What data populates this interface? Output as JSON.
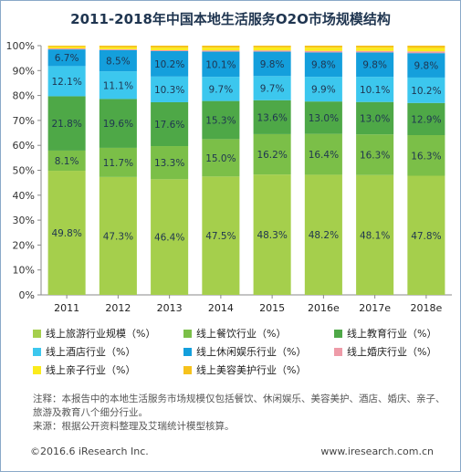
{
  "chart_data": {
    "type": "bar",
    "stacked": true,
    "title": "2011-2018年中国本地生活服务O2O市场规模结构",
    "categories": [
      "2011",
      "2012",
      "2013",
      "2014",
      "2015",
      "2016e",
      "2017e",
      "2018e"
    ],
    "y_ticks": [
      "0%",
      "10%",
      "20%",
      "30%",
      "40%",
      "50%",
      "60%",
      "70%",
      "80%",
      "90%",
      "100%"
    ],
    "ylim": [
      0,
      100
    ],
    "grid": false,
    "legend_position": "bottom",
    "series": [
      {
        "name": "线上旅游行业规模（%）",
        "color": "#a5cf4c",
        "values": [
          49.8,
          47.3,
          46.4,
          47.5,
          48.3,
          48.2,
          48.1,
          47.8
        ]
      },
      {
        "name": "线上餐饮行业（%）",
        "color": "#7bbf48",
        "values": [
          8.1,
          11.7,
          13.3,
          15.0,
          16.2,
          16.4,
          16.3,
          16.3
        ]
      },
      {
        "name": "线上教育行业（%）",
        "color": "#4ea847",
        "values": [
          21.8,
          19.6,
          17.6,
          15.3,
          13.6,
          13.0,
          13.0,
          12.9
        ]
      },
      {
        "name": "线上酒店行业（%）",
        "color": "#3cc7ee",
        "values": [
          12.1,
          11.1,
          10.3,
          9.7,
          9.7,
          9.9,
          10.1,
          10.2
        ]
      },
      {
        "name": "线上休闲娱乐行业（%）",
        "color": "#149fdc",
        "values": [
          6.7,
          8.5,
          10.2,
          10.1,
          9.8,
          9.8,
          9.8,
          9.8
        ]
      },
      {
        "name": "线上婚庆行业（%）",
        "color": "#ee9ba8",
        "values": [
          0.4,
          0.4,
          0.4,
          0.5,
          0.5,
          0.6,
          0.6,
          0.7
        ]
      },
      {
        "name": "线上亲子行业（%）",
        "color": "#fbeb1c",
        "values": [
          0.6,
          0.7,
          1.0,
          1.1,
          1.2,
          1.3,
          1.3,
          1.4
        ]
      },
      {
        "name": "线上美容美护行业（%）",
        "color": "#f6c21c",
        "values": [
          0.5,
          0.7,
          0.8,
          0.8,
          0.7,
          0.8,
          0.8,
          0.9
        ]
      }
    ],
    "labeled_series": [
      0,
      1,
      2,
      3,
      4
    ],
    "label_color": "#1f3550"
  },
  "notes": {
    "line1": "注释：本报告中的本地生活服务市场规模仅包括餐饮、休闲娱乐、美容美护、酒店、婚庆、亲子、",
    "line2": "旅游及教育八个细分行业。",
    "line3": "来源：根据公开资料整理及艾瑞统计模型核算。"
  },
  "footer": {
    "copyright": "©2016.6 iResearch Inc.",
    "website": "www.iresearch.com.cn"
  }
}
